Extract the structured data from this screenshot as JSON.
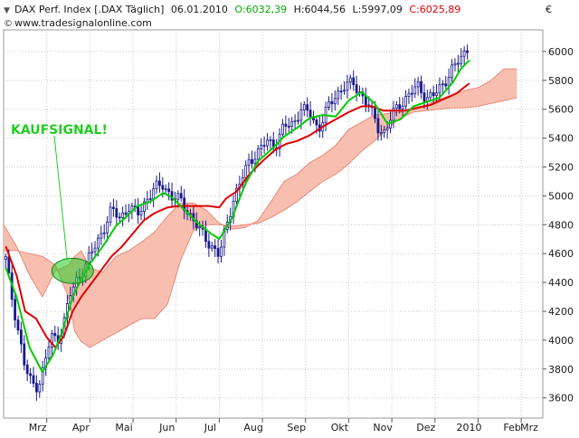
{
  "header": {
    "instrument": "DAX Perf. Index [.DAX Täglich]",
    "date": "06.01.2010",
    "open": "O:6032,39",
    "high": "H:6044,56",
    "low": "L:5997,09",
    "close": "C:6025,89",
    "website": "www.tradesignalonline.com",
    "currency": "€"
  },
  "annotation": {
    "text": "KAUFSIGNAL!"
  },
  "colors": {
    "candles": "#1a1a8c",
    "tenkan": "#00cc00",
    "kijun": "#dd0000",
    "cloud_fill": "#f7b8a8",
    "cloud_edge": "#e88a78",
    "annotation": "#22cc22",
    "open_text": "#00aa00",
    "close_text": "#dd0000",
    "grid": "#c8c8c8"
  },
  "chart_data": {
    "type": "line",
    "title": "DAX Perf. Index [.DAX Täglich]",
    "ylabel": "€",
    "xlim": [
      2,
      14.5
    ],
    "ylim": [
      3460,
      6150
    ],
    "grid": true,
    "y_ticks": [
      3600,
      3800,
      4000,
      4200,
      4400,
      4600,
      4800,
      5000,
      5200,
      5400,
      5600,
      5800,
      6000
    ],
    "x_ticks": [
      {
        "x": 3,
        "label": "Mrz"
      },
      {
        "x": 4,
        "label": "Apr"
      },
      {
        "x": 5,
        "label": "Mai"
      },
      {
        "x": 6,
        "label": "Jun"
      },
      {
        "x": 7,
        "label": "Jul"
      },
      {
        "x": 8,
        "label": "Aug"
      },
      {
        "x": 9,
        "label": "Sep"
      },
      {
        "x": 10,
        "label": "Okt"
      },
      {
        "x": 11,
        "label": "Nov"
      },
      {
        "x": 12,
        "label": "Dez"
      },
      {
        "x": 13,
        "label": "2010"
      },
      {
        "x": 14,
        "label": "Feb"
      },
      {
        "x": 15,
        "label": "Mrz"
      }
    ],
    "series": [
      {
        "kind": "price",
        "points": [
          [
            2.05,
            4560
          ],
          [
            2.2,
            4280
          ],
          [
            2.35,
            4050
          ],
          [
            2.5,
            3800
          ],
          [
            2.65,
            3700
          ],
          [
            2.8,
            3680
          ],
          [
            2.95,
            3830
          ],
          [
            3.1,
            4030
          ],
          [
            3.25,
            4000
          ],
          [
            3.4,
            4130
          ],
          [
            3.55,
            4320
          ],
          [
            3.7,
            4420
          ],
          [
            3.9,
            4520
          ],
          [
            4.1,
            4640
          ],
          [
            4.3,
            4760
          ],
          [
            4.5,
            4900
          ],
          [
            4.7,
            4850
          ],
          [
            4.9,
            4920
          ],
          [
            5.1,
            4870
          ],
          [
            5.3,
            4970
          ],
          [
            5.5,
            5050
          ],
          [
            5.7,
            5080
          ],
          [
            5.9,
            4990
          ],
          [
            6.1,
            4970
          ],
          [
            6.3,
            4880
          ],
          [
            6.5,
            4780
          ],
          [
            6.7,
            4700
          ],
          [
            6.9,
            4620
          ],
          [
            7.0,
            4580
          ],
          [
            7.15,
            4780
          ],
          [
            7.3,
            4950
          ],
          [
            7.5,
            5100
          ],
          [
            7.7,
            5250
          ],
          [
            7.9,
            5300
          ],
          [
            8.1,
            5380
          ],
          [
            8.3,
            5350
          ],
          [
            8.5,
            5480
          ],
          [
            8.7,
            5500
          ],
          [
            8.9,
            5600
          ],
          [
            9.1,
            5570
          ],
          [
            9.3,
            5460
          ],
          [
            9.5,
            5600
          ],
          [
            9.7,
            5700
          ],
          [
            9.9,
            5760
          ],
          [
            10.1,
            5780
          ],
          [
            10.3,
            5700
          ],
          [
            10.5,
            5600
          ],
          [
            10.7,
            5460
          ],
          [
            10.85,
            5440
          ],
          [
            11.0,
            5560
          ],
          [
            11.2,
            5640
          ],
          [
            11.4,
            5700
          ],
          [
            11.6,
            5760
          ],
          [
            11.8,
            5680
          ],
          [
            12.0,
            5700
          ],
          [
            12.2,
            5780
          ],
          [
            12.4,
            5880
          ],
          [
            12.6,
            5950
          ],
          [
            12.75,
            6025
          ]
        ]
      },
      {
        "name": "",
        "kind": "tenkan",
        "x": [
          2.05,
          2.3,
          2.6,
          2.9,
          3.15,
          3.35,
          3.6,
          3.8,
          4.0,
          4.3,
          4.6,
          4.9,
          5.1,
          5.4,
          5.7,
          5.9,
          6.2,
          6.5,
          6.8,
          7.0,
          7.3,
          7.6,
          7.9,
          8.2,
          8.5,
          8.8,
          9.1,
          9.4,
          9.7,
          10.0,
          10.3,
          10.6,
          10.9,
          11.2,
          11.5,
          11.8,
          12.1,
          12.4,
          12.6,
          12.8
        ],
        "y": [
          4500,
          4300,
          3950,
          3780,
          3900,
          4050,
          4300,
          4420,
          4530,
          4650,
          4790,
          4870,
          4930,
          4960,
          5020,
          4990,
          4900,
          4810,
          4740,
          4700,
          4850,
          5080,
          5240,
          5320,
          5410,
          5470,
          5540,
          5560,
          5550,
          5660,
          5720,
          5640,
          5500,
          5530,
          5620,
          5650,
          5680,
          5780,
          5880,
          5940
        ]
      },
      {
        "name": "",
        "kind": "kijun",
        "x": [
          2.05,
          2.3,
          2.5,
          2.75,
          3.0,
          3.2,
          3.4,
          3.6,
          3.8,
          4.0,
          4.25,
          4.5,
          4.75,
          5.0,
          5.25,
          5.5,
          5.8,
          6.05,
          6.4,
          6.75,
          7.0,
          7.15,
          7.4,
          7.7,
          8.0,
          8.3,
          8.55,
          8.8,
          9.1,
          9.4,
          9.7,
          10.0,
          10.3,
          10.55,
          10.8,
          11.0,
          11.3,
          11.6,
          11.9,
          12.2,
          12.5,
          12.8
        ],
        "y": [
          4650,
          4450,
          4200,
          4150,
          4020,
          3950,
          4030,
          4200,
          4300,
          4380,
          4480,
          4580,
          4650,
          4740,
          4830,
          4880,
          4920,
          4930,
          4930,
          4930,
          4920,
          4980,
          5030,
          5150,
          5240,
          5320,
          5360,
          5380,
          5420,
          5480,
          5530,
          5580,
          5620,
          5620,
          5590,
          5590,
          5590,
          5610,
          5630,
          5670,
          5710,
          5780
        ]
      },
      {
        "name": "",
        "kind": "cloud_top",
        "x": [
          2.0,
          2.3,
          2.6,
          2.9,
          3.2,
          3.5,
          3.65,
          3.8,
          4.0,
          4.3,
          4.6,
          4.9,
          5.2,
          5.5,
          5.8,
          6.1,
          6.4,
          6.7,
          7.0,
          7.3,
          7.6,
          7.9,
          8.2,
          8.5,
          8.8,
          9.1,
          9.4,
          9.7,
          10.0,
          10.3,
          10.6,
          10.9,
          11.2,
          11.5,
          11.8,
          12.1,
          12.4,
          12.7,
          13.0,
          13.3,
          13.6,
          13.9
        ],
        "y": [
          4800,
          4650,
          4450,
          4300,
          4480,
          4520,
          4580,
          4620,
          4500,
          4470,
          4580,
          4620,
          4680,
          4750,
          4860,
          4950,
          4950,
          4900,
          4810,
          4770,
          4780,
          4830,
          4960,
          5100,
          5150,
          5230,
          5280,
          5350,
          5460,
          5510,
          5560,
          5570,
          5580,
          5610,
          5630,
          5670,
          5700,
          5730,
          5750,
          5800,
          5880,
          5880
        ]
      },
      {
        "name": "",
        "kind": "cloud_bottom",
        "x": [
          2.0,
          2.3,
          2.6,
          2.9,
          3.2,
          3.5,
          3.65,
          3.8,
          4.0,
          4.3,
          4.6,
          4.9,
          5.2,
          5.5,
          5.8,
          6.1,
          6.4,
          6.7,
          7.0,
          7.3,
          7.6,
          7.9,
          8.2,
          8.5,
          8.8,
          9.1,
          9.4,
          9.7,
          10.0,
          10.3,
          10.6,
          10.9,
          11.2,
          11.5,
          11.8,
          12.1,
          12.4,
          12.7,
          13.0,
          13.3,
          13.6,
          13.9
        ],
        "y": [
          4620,
          4620,
          4600,
          4580,
          4520,
          4300,
          4060,
          3990,
          3950,
          4000,
          4050,
          4100,
          4150,
          4150,
          4250,
          4550,
          4760,
          4800,
          4800,
          4790,
          4800,
          4810,
          4850,
          4900,
          4960,
          5030,
          5100,
          5150,
          5220,
          5310,
          5380,
          5470,
          5540,
          5580,
          5590,
          5600,
          5610,
          5610,
          5620,
          5640,
          5660,
          5680
        ]
      }
    ]
  }
}
